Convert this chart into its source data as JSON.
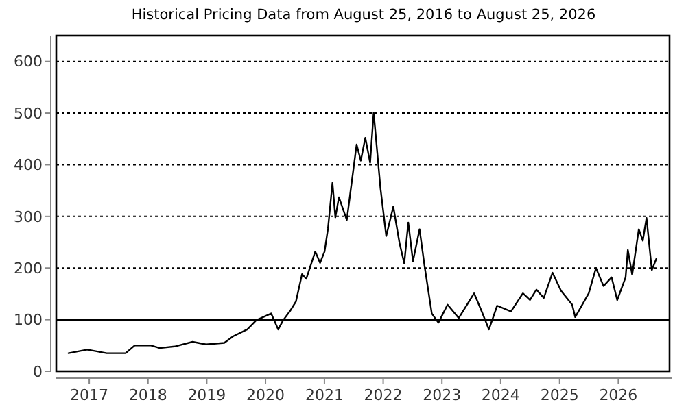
{
  "chart_data": {
    "type": "line",
    "title": "Historical Pricing Data from August 25, 2016 to August 25, 2026",
    "x": [
      "2016-08-25",
      "2016-12-20",
      "2017-04-20",
      "2017-08-15",
      "2017-10-10",
      "2018-01-20",
      "2018-03-15",
      "2018-06-15",
      "2018-10-05",
      "2018-12-28",
      "2019-04-20",
      "2019-06-15",
      "2019-09-10",
      "2019-11-05",
      "2020-02-05",
      "2020-03-20",
      "2020-04-20",
      "2020-06-02",
      "2020-07-08",
      "2020-08-15",
      "2020-09-10",
      "2020-11-05",
      "2020-12-05",
      "2021-01-02",
      "2021-01-23",
      "2021-02-20",
      "2021-03-10",
      "2021-04-01",
      "2021-05-20",
      "2021-07-20",
      "2021-08-15",
      "2021-09-12",
      "2021-10-12",
      "2021-11-03",
      "2021-11-22",
      "2021-12-15",
      "2022-01-20",
      "2022-03-05",
      "2022-04-12",
      "2022-05-12",
      "2022-06-06",
      "2022-07-05",
      "2022-08-15",
      "2022-09-15",
      "2022-10-30",
      "2022-12-10",
      "2023-02-05",
      "2023-04-15",
      "2023-07-20",
      "2023-09-05",
      "2023-10-20",
      "2023-12-10",
      "2024-03-05",
      "2024-05-18",
      "2024-07-01",
      "2024-08-10",
      "2024-09-25",
      "2024-11-18",
      "2025-01-10",
      "2025-03-20",
      "2025-04-08",
      "2025-07-01",
      "2025-08-15",
      "2025-10-01",
      "2025-11-20",
      "2025-12-25",
      "2026-02-15",
      "2026-03-01",
      "2026-03-28",
      "2026-05-08",
      "2026-06-02",
      "2026-06-25",
      "2026-07-28",
      "2026-08-25"
    ],
    "series": [
      {
        "color": "#000000",
        "values": [
          35,
          42,
          35,
          35,
          50,
          50,
          45,
          48,
          57,
          52,
          55,
          68,
          81,
          99,
          112,
          81,
          99,
          117,
          135,
          188,
          179,
          232,
          210,
          232,
          276,
          365,
          298,
          337,
          293,
          439,
          408,
          452,
          404,
          501,
          435,
          355,
          262,
          319,
          249,
          209,
          288,
          213,
          275,
          204,
          112,
          94,
          129,
          103,
          151,
          116,
          81,
          127,
          116,
          151,
          138,
          158,
          142,
          191,
          156,
          129,
          105,
          151,
          200,
          165,
          182,
          138,
          182,
          235,
          187,
          275,
          253,
          297,
          196,
          218
        ]
      }
    ],
    "xlim": [
      "2016-06-10",
      "2026-11-15"
    ],
    "xticks": [
      "2017",
      "2018",
      "2019",
      "2020",
      "2021",
      "2022",
      "2023",
      "2024",
      "2025",
      "2026"
    ],
    "ylim": [
      0,
      650
    ],
    "yticks": [
      0,
      100,
      200,
      300,
      400,
      500,
      600
    ],
    "grid": "y",
    "marker": "none",
    "line_style": "solid",
    "ref_lines": [
      {
        "axis": "y",
        "value": 100,
        "color": "#000000",
        "line_style": "solid"
      }
    ]
  }
}
